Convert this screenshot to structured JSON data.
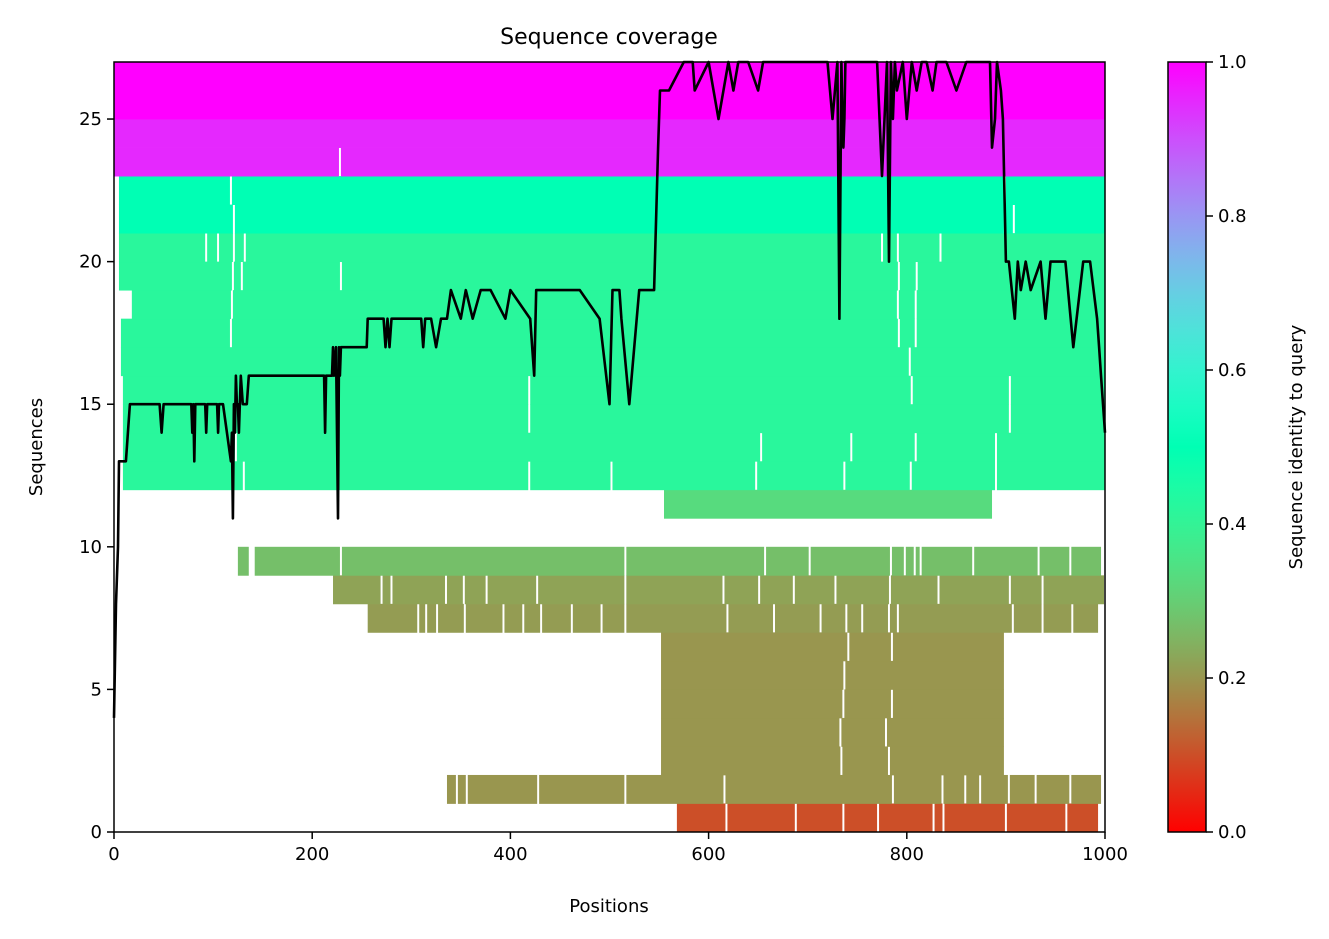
{
  "chart_data": {
    "type": "heatmap",
    "title": "Sequence coverage",
    "xlabel": "Positions",
    "ylabel": "Sequences",
    "xlim": [
      0,
      1000
    ],
    "ylim": [
      0,
      27
    ],
    "xticks": [
      0,
      200,
      400,
      600,
      800,
      1000
    ],
    "yticks": [
      0,
      5,
      10,
      15,
      20,
      25
    ],
    "colorbar": {
      "label": "Sequence identity to query",
      "range": [
        0,
        1
      ],
      "ticks": [
        "0.0",
        "0.2",
        "0.4",
        "0.6",
        "0.8",
        "1.0"
      ],
      "colormap": "rainbow_r"
    },
    "rows": [
      {
        "row": 0,
        "start": 568,
        "end": 993,
        "identity": 0.1,
        "gaps": [
          [
            617,
            619
          ],
          [
            687,
            689
          ],
          [
            735,
            737
          ],
          [
            770,
            772
          ],
          [
            826,
            828
          ],
          [
            836,
            838
          ],
          [
            899,
            901
          ],
          [
            960,
            962
          ]
        ]
      },
      {
        "row": 1,
        "start": 336,
        "end": 996,
        "identity": 0.2,
        "gaps": [
          [
            345,
            347
          ],
          [
            355,
            357
          ],
          [
            427,
            429
          ],
          [
            515,
            517
          ],
          [
            615,
            617
          ],
          [
            785,
            787
          ],
          [
            835,
            837
          ],
          [
            858,
            860
          ],
          [
            873,
            875
          ],
          [
            902,
            904
          ],
          [
            929,
            931
          ],
          [
            964,
            966
          ]
        ]
      },
      {
        "row": 2,
        "start": 552,
        "end": 898,
        "identity": 0.2,
        "gaps": [
          [
            733,
            735
          ],
          [
            781,
            783
          ]
        ]
      },
      {
        "row": 3,
        "start": 552,
        "end": 898,
        "identity": 0.2,
        "gaps": [
          [
            732,
            734
          ],
          [
            778,
            780
          ]
        ]
      },
      {
        "row": 4,
        "start": 552,
        "end": 898,
        "identity": 0.2,
        "gaps": [
          [
            735,
            737
          ],
          [
            784,
            786
          ]
        ]
      },
      {
        "row": 5,
        "start": 552,
        "end": 898,
        "identity": 0.2,
        "gaps": [
          [
            736,
            738
          ]
        ]
      },
      {
        "row": 6,
        "start": 552,
        "end": 898,
        "identity": 0.2,
        "gaps": [
          [
            740,
            742
          ],
          [
            784,
            786
          ]
        ]
      },
      {
        "row": 7,
        "start": 256,
        "end": 993,
        "identity": 0.21,
        "gaps": [
          [
            306,
            308
          ],
          [
            314,
            316
          ],
          [
            325,
            327
          ],
          [
            353,
            355
          ],
          [
            392,
            394
          ],
          [
            412,
            414
          ],
          [
            430,
            432
          ],
          [
            461,
            463
          ],
          [
            491,
            493
          ],
          [
            515,
            517
          ],
          [
            618,
            620
          ],
          [
            665,
            667
          ],
          [
            712,
            714
          ],
          [
            738,
            740
          ],
          [
            754,
            756
          ],
          [
            781,
            783
          ],
          [
            790,
            792
          ],
          [
            906,
            908
          ],
          [
            936,
            938
          ],
          [
            966,
            968
          ]
        ]
      },
      {
        "row": 8,
        "start": 221,
        "end": 999,
        "identity": 0.22,
        "gaps": [
          [
            269,
            271
          ],
          [
            279,
            281
          ],
          [
            334,
            336
          ],
          [
            352,
            354
          ],
          [
            375,
            377
          ],
          [
            426,
            428
          ],
          [
            515,
            517
          ],
          [
            614,
            616
          ],
          [
            650,
            652
          ],
          [
            685,
            687
          ],
          [
            727,
            729
          ],
          [
            782,
            784
          ],
          [
            831,
            833
          ],
          [
            903,
            905
          ],
          [
            936,
            938
          ]
        ]
      },
      {
        "row": 9,
        "start": 125,
        "end": 996,
        "identity": 0.27,
        "gaps": [
          [
            136,
            142
          ],
          [
            228,
            230
          ],
          [
            515,
            517
          ],
          [
            656,
            658
          ],
          [
            701,
            703
          ],
          [
            783,
            785
          ],
          [
            797,
            799
          ],
          [
            807,
            809
          ],
          [
            813,
            815
          ],
          [
            866,
            868
          ],
          [
            932,
            934
          ],
          [
            964,
            966
          ]
        ]
      },
      {
        "row": 11,
        "start": 555,
        "end": 886,
        "identity": 0.33,
        "gaps": []
      },
      {
        "row": 12,
        "start": 9,
        "end": 1000,
        "identity": 0.42,
        "gaps": [
          [
            130,
            132
          ],
          [
            418,
            420
          ],
          [
            501,
            503
          ],
          [
            647,
            649
          ],
          [
            736,
            738
          ],
          [
            803,
            805
          ],
          [
            889,
            891
          ]
        ]
      },
      {
        "row": 13,
        "start": 9,
        "end": 1000,
        "identity": 0.42,
        "gaps": [
          [
            122,
            124
          ],
          [
            652,
            654
          ],
          [
            743,
            745
          ],
          [
            808,
            810
          ],
          [
            889,
            891
          ]
        ]
      },
      {
        "row": 14,
        "start": 9,
        "end": 1000,
        "identity": 0.42,
        "gaps": [
          [
            418,
            420
          ],
          [
            903,
            905
          ]
        ]
      },
      {
        "row": 15,
        "start": 9,
        "end": 1000,
        "identity": 0.42,
        "gaps": [
          [
            418,
            420
          ],
          [
            804,
            806
          ],
          [
            903,
            905
          ]
        ]
      },
      {
        "row": 16,
        "start": 7,
        "end": 1000,
        "identity": 0.42,
        "gaps": [
          [
            802,
            804
          ]
        ]
      },
      {
        "row": 17,
        "start": 7,
        "end": 1000,
        "identity": 0.42,
        "gaps": [
          [
            117,
            119
          ],
          [
            791,
            793
          ],
          [
            808,
            810
          ]
        ]
      },
      {
        "row": 18,
        "start": 18,
        "end": 1000,
        "identity": 0.42,
        "gaps": [
          [
            118,
            120
          ],
          [
            790,
            792
          ],
          [
            808,
            810
          ]
        ]
      },
      {
        "row": 19,
        "start": 5,
        "end": 1000,
        "identity": 0.42,
        "gaps": [
          [
            119,
            121
          ],
          [
            128,
            130
          ],
          [
            228,
            230
          ],
          [
            791,
            793
          ],
          [
            809,
            811
          ]
        ]
      },
      {
        "row": 20,
        "start": 5,
        "end": 1000,
        "identity": 0.42,
        "gaps": [
          [
            92,
            94
          ],
          [
            104,
            106
          ],
          [
            120,
            122
          ],
          [
            131,
            133
          ],
          [
            774,
            776
          ],
          [
            790,
            792
          ],
          [
            833,
            835
          ]
        ]
      },
      {
        "row": 21,
        "start": 5,
        "end": 1000,
        "identity": 0.5,
        "gaps": [
          [
            120,
            122
          ],
          [
            898,
            900
          ],
          [
            907,
            909
          ]
        ]
      },
      {
        "row": 22,
        "start": 5,
        "end": 1000,
        "identity": 0.5,
        "gaps": [
          [
            117,
            119
          ],
          [
            898,
            900
          ]
        ]
      },
      {
        "row": 23,
        "start": 0,
        "end": 1000,
        "identity": 0.95,
        "gaps": [
          [
            227,
            229
          ]
        ]
      },
      {
        "row": 24,
        "start": 0,
        "end": 1000,
        "identity": 0.95,
        "gaps": []
      },
      {
        "row": 25,
        "start": 0,
        "end": 1000,
        "identity": 1.0,
        "gaps": []
      },
      {
        "row": 26,
        "start": 0,
        "end": 1000,
        "identity": 1.0,
        "gaps": []
      }
    ],
    "coverage_line": {
      "color": "#000000",
      "x": [
        0,
        2,
        4,
        5,
        6,
        8,
        10,
        12,
        14,
        16,
        18,
        20,
        22,
        24,
        28,
        46,
        48,
        50,
        78,
        79,
        80,
        81,
        82,
        83,
        84,
        92,
        93,
        94,
        104,
        105,
        106,
        110,
        118,
        119,
        120,
        121,
        122,
        123,
        124,
        125,
        126,
        128,
        130,
        132,
        134,
        136,
        138,
        140,
        142,
        145,
        150,
        212,
        213,
        214,
        220,
        221,
        222,
        224,
        226,
        227,
        228,
        229,
        230,
        232,
        240,
        255,
        256,
        257,
        272,
        274,
        276,
        278,
        280,
        310,
        312,
        314,
        320,
        325,
        330,
        336,
        340,
        350,
        355,
        362,
        370,
        380,
        395,
        400,
        420,
        424,
        426,
        430,
        470,
        490,
        500,
        503,
        510,
        512,
        520,
        530,
        545,
        549,
        551,
        555,
        560,
        575,
        584,
        586,
        600,
        610,
        620,
        625,
        630,
        640,
        650,
        655,
        660,
        670,
        680,
        700,
        720,
        725,
        730,
        732,
        734,
        735,
        736,
        737,
        738,
        740,
        750,
        760,
        770,
        775,
        780,
        782,
        784,
        786,
        788,
        790,
        796,
        800,
        805,
        810,
        815,
        820,
        826,
        830,
        840,
        850,
        860,
        880,
        884,
        886,
        889,
        891,
        895,
        897,
        900,
        903,
        906,
        909,
        912,
        915,
        920,
        925,
        935,
        940,
        945,
        960,
        968,
        978,
        985,
        992,
        994,
        996,
        998,
        1000
      ],
      "y": [
        4,
        8,
        10,
        13,
        13,
        13,
        13,
        13,
        14,
        15,
        15,
        15,
        15,
        15,
        15,
        15,
        14,
        15,
        15,
        14,
        15,
        13,
        15,
        15,
        15,
        15,
        14,
        15,
        15,
        14,
        15,
        15,
        13,
        14,
        11,
        15,
        14,
        16,
        15,
        15,
        14,
        16,
        15,
        15,
        15,
        16,
        16,
        16,
        16,
        16,
        16,
        16,
        14,
        16,
        16,
        17,
        16,
        17,
        11,
        17,
        16,
        17,
        17,
        17,
        17,
        17,
        18,
        18,
        18,
        17,
        18,
        17,
        18,
        18,
        17,
        18,
        18,
        17,
        18,
        18,
        19,
        18,
        19,
        18,
        19,
        19,
        18,
        19,
        18,
        16,
        19,
        19,
        19,
        18,
        15,
        19,
        19,
        18,
        15,
        19,
        19,
        24,
        26,
        26,
        26,
        27,
        27,
        26,
        27,
        25,
        27,
        26,
        27,
        27,
        26,
        27,
        27,
        27,
        27,
        27,
        27,
        25,
        27,
        18,
        27,
        25,
        24,
        25,
        27,
        27,
        27,
        27,
        27,
        23,
        27,
        20,
        27,
        25,
        27,
        26,
        27,
        25,
        27,
        26,
        27,
        27,
        26,
        27,
        27,
        26,
        27,
        27,
        27,
        24,
        25,
        27,
        26,
        25,
        20,
        20,
        19,
        18,
        20,
        19,
        20,
        19,
        20,
        18,
        20,
        20,
        17,
        20,
        20,
        18,
        17,
        16,
        15,
        14
      ]
    }
  }
}
